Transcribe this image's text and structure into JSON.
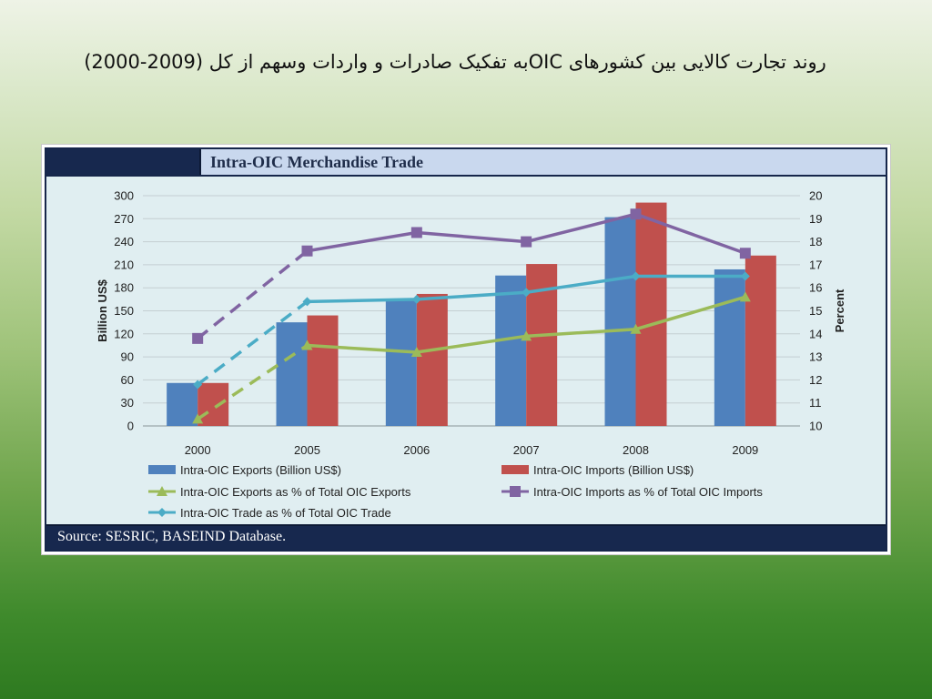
{
  "slide": {
    "title": "روند تجارت کالایی بین کشورهای OICبه تفکیک صادرات و واردات وسهم از کل (2009-2000)"
  },
  "panel": {
    "header_title": "Intra-OIC Merchandise Trade",
    "source": "Source: SESRIC, BASEIND Database."
  },
  "colors": {
    "exports_bar": "#4f81bd",
    "imports_bar": "#c0504d",
    "exports_pct": "#9bbb59",
    "imports_pct": "#8064a2",
    "trade_pct": "#4bacc6"
  },
  "chart_data": {
    "type": "bar",
    "title": "",
    "categories": [
      "2000",
      "2005",
      "2006",
      "2007",
      "2008",
      "2009"
    ],
    "ylabel": "Billion US$",
    "y2label": "Percent",
    "ylim": [
      0,
      300
    ],
    "y_ticks": [
      0,
      30,
      60,
      90,
      120,
      150,
      180,
      210,
      240,
      270,
      300
    ],
    "y2lim": [
      10,
      20
    ],
    "y2_ticks": [
      10,
      11,
      12,
      13,
      14,
      15,
      16,
      17,
      18,
      19,
      20
    ],
    "grid": true,
    "legend_position": "bottom",
    "series": [
      {
        "name": "Intra-OIC Exports (Billion US$)",
        "kind": "bar",
        "axis": "left",
        "values": [
          56,
          135,
          163,
          196,
          272,
          204
        ]
      },
      {
        "name": "Intra-OIC Imports  (Billion US$)",
        "kind": "bar",
        "axis": "left",
        "values": [
          56,
          144,
          172,
          211,
          291,
          222
        ]
      },
      {
        "name": "Intra-OIC Exports as % of Total  OIC Exports",
        "kind": "line",
        "axis": "right",
        "marker": "triangle",
        "values": [
          10.3,
          13.5,
          13.2,
          13.9,
          14.2,
          15.6
        ]
      },
      {
        "name": "Intra-OIC Imports  as % of Total OIC Imports",
        "kind": "line",
        "axis": "right",
        "marker": "square",
        "values": [
          13.8,
          17.6,
          18.4,
          18.0,
          19.2,
          17.5
        ]
      },
      {
        "name": "Intra-OIC Trade as % of Total OIC Trade",
        "kind": "line",
        "axis": "right",
        "marker": "diamond",
        "values": [
          11.8,
          15.4,
          15.5,
          15.8,
          16.5,
          16.5
        ]
      }
    ]
  }
}
